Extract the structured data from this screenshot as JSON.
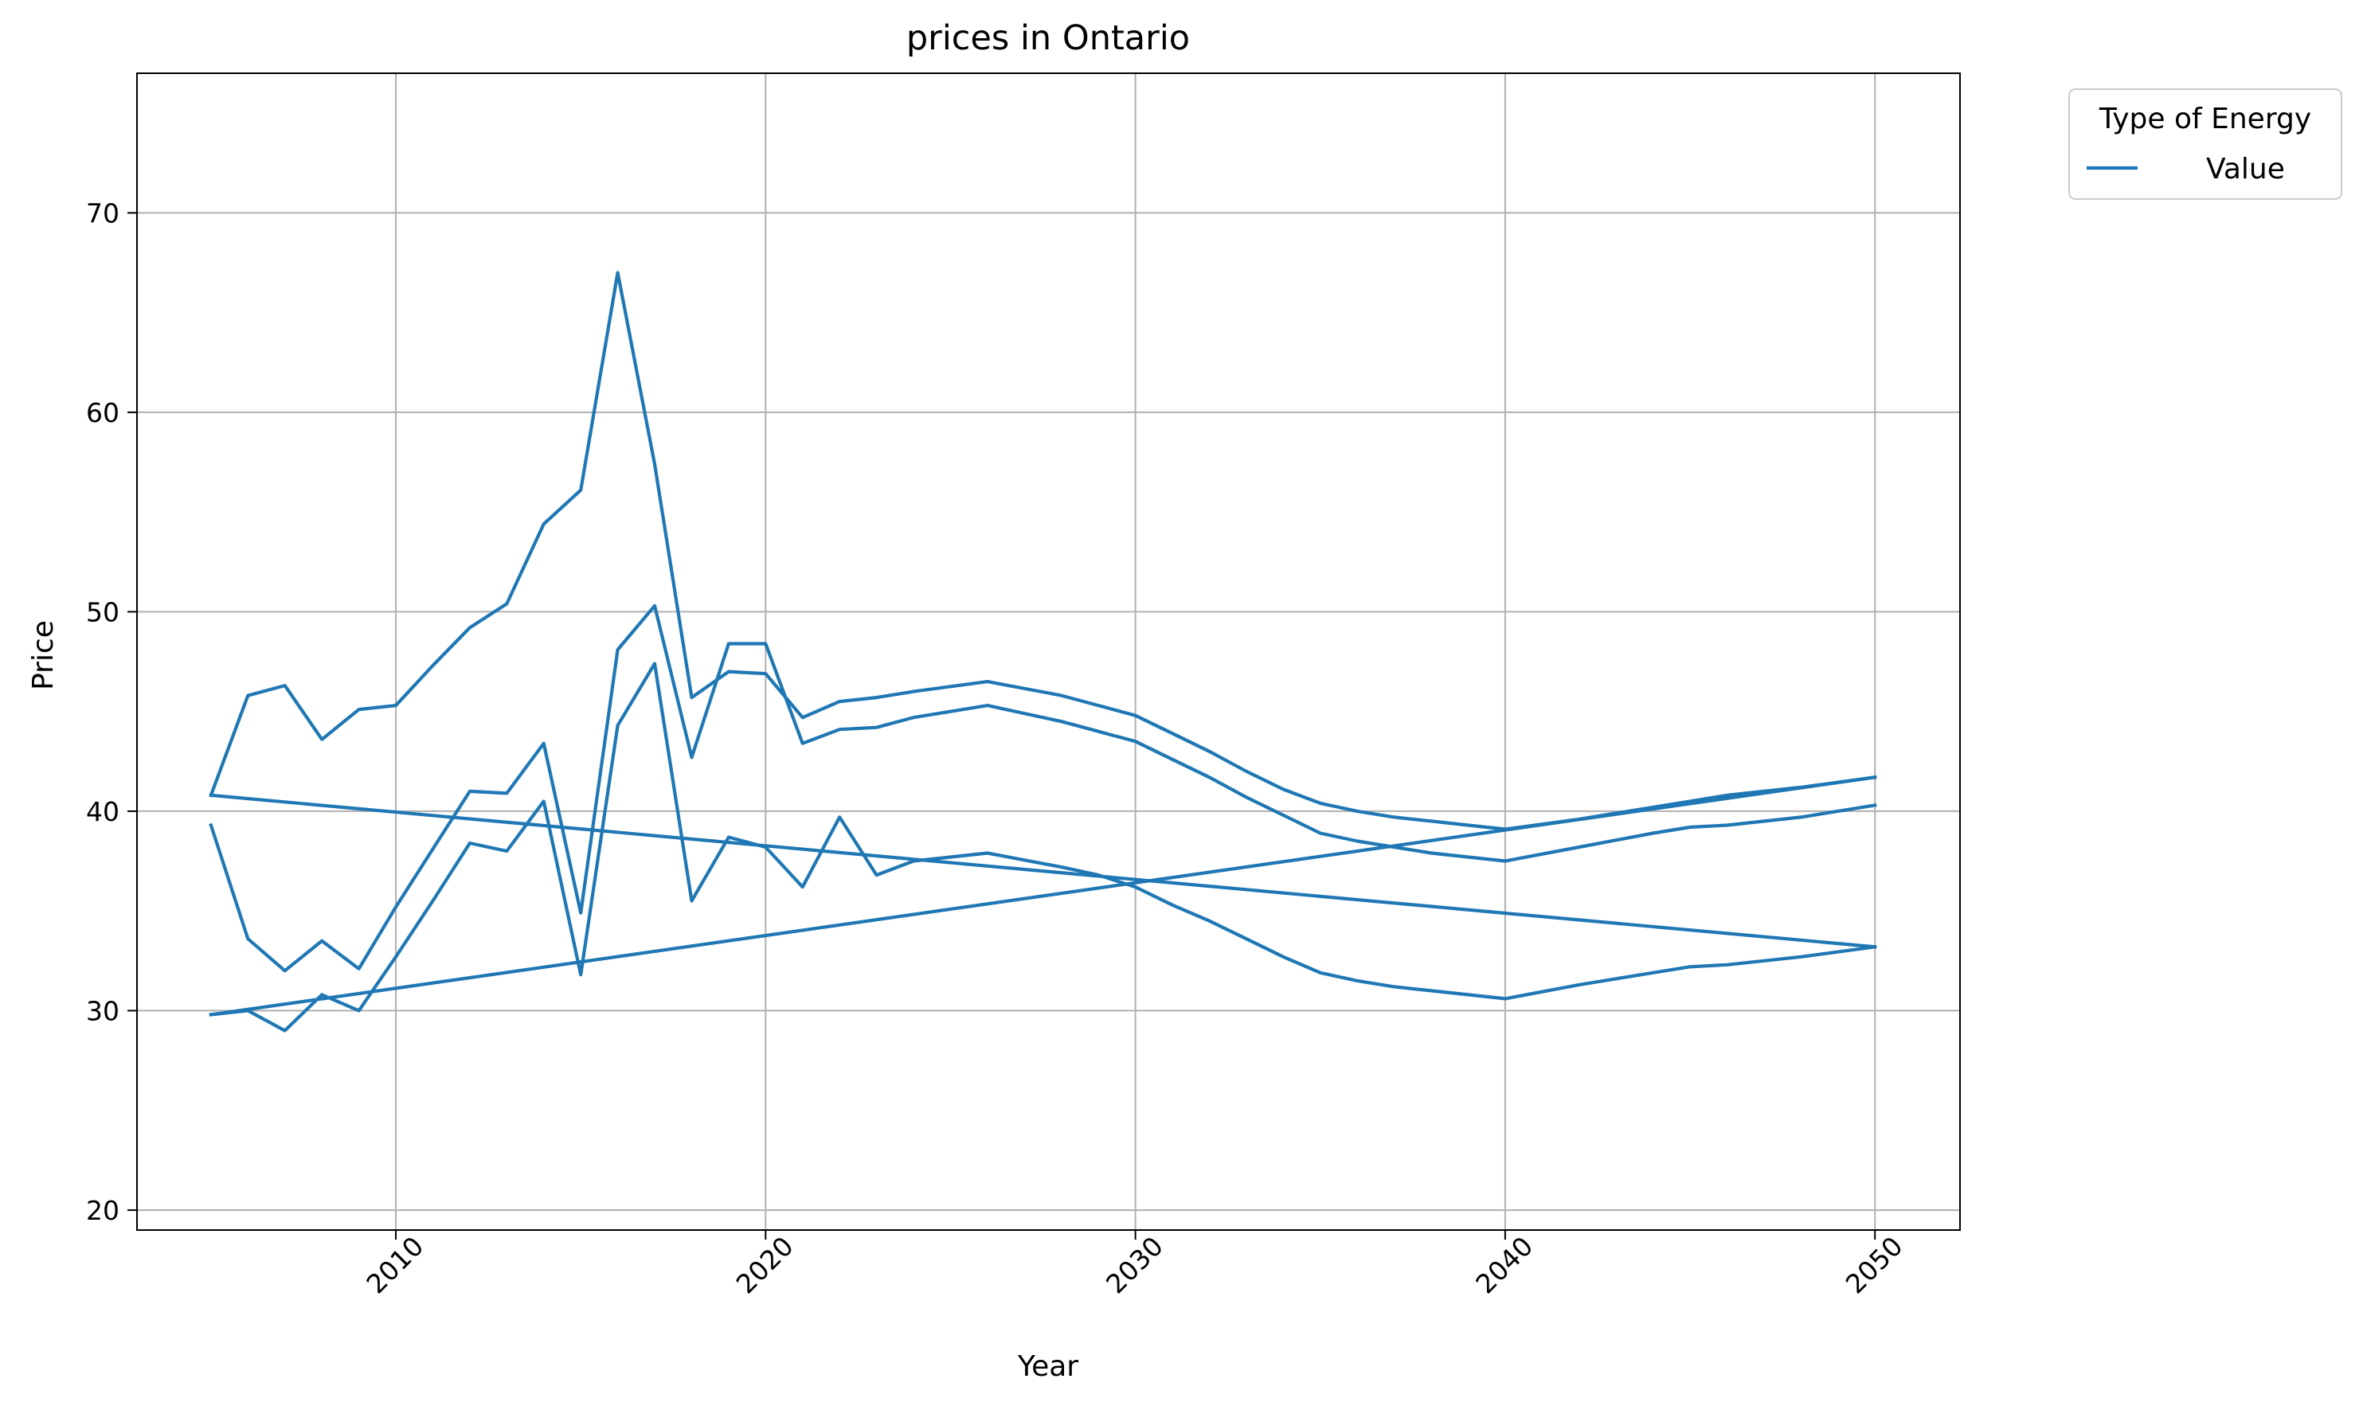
{
  "chart_data": {
    "type": "line",
    "title": "prices in Ontario",
    "xlabel": "Year",
    "ylabel": "Price",
    "xlim": [
      2003,
      2052.3
    ],
    "ylim": [
      19,
      77
    ],
    "xticks": [
      2010,
      2020,
      2030,
      2040,
      2050
    ],
    "yticks": [
      20,
      30,
      40,
      50,
      60,
      70
    ],
    "grid": true,
    "legend": {
      "title": "Type of Energy",
      "entries": [
        "Value"
      ],
      "placement": "outside-top-right"
    },
    "color": "#1f77b4",
    "series": [
      {
        "name": "Value",
        "x": [
          2005,
          2006,
          2007,
          2008,
          2009,
          2010,
          2011,
          2012,
          2013,
          2014,
          2015,
          2016,
          2017,
          2018,
          2019,
          2020,
          2021,
          2022,
          2023,
          2024,
          2025,
          2026,
          2027,
          2028,
          2029,
          2030,
          2031,
          2032,
          2033,
          2034,
          2035,
          2036,
          2037,
          2038,
          2039,
          2040,
          2041,
          2042,
          2043,
          2044,
          2045,
          2046,
          2047,
          2048,
          2049,
          2050,
          2005,
          2006,
          2007,
          2008,
          2009,
          2010,
          2011,
          2012,
          2013,
          2014,
          2015,
          2016,
          2017,
          2018,
          2019,
          2020,
          2021,
          2022,
          2023,
          2024,
          2025,
          2026,
          2027,
          2028,
          2029,
          2030,
          2031,
          2032,
          2033,
          2034,
          2035,
          2036,
          2037,
          2038,
          2039,
          2040,
          2041,
          2042,
          2043,
          2044,
          2045,
          2046,
          2047,
          2048,
          2049,
          2050,
          2005,
          2050,
          2005,
          2006,
          2007,
          2008,
          2009,
          2010,
          2011,
          2012,
          2013,
          2014,
          2015,
          2016,
          2017,
          2018,
          2019,
          2020,
          2021,
          2022,
          2023,
          2024,
          2025,
          2026,
          2027,
          2028,
          2029,
          2030,
          2031,
          2032,
          2033,
          2034,
          2035,
          2036,
          2037,
          2038,
          2039,
          2040,
          2041,
          2042,
          2043,
          2044,
          2045,
          2046,
          2047,
          2048,
          2049,
          2050,
          2005,
          2050
        ],
        "y": [
          40.8,
          45.8,
          46.3,
          43.6,
          45.1,
          45.3,
          47.3,
          49.2,
          50.4,
          54.4,
          56.1,
          67.0,
          57.4,
          45.7,
          47.0,
          46.9,
          44.7,
          45.5,
          45.7,
          46.0,
          46.3,
          46.5,
          46.1,
          45.8,
          45.3,
          44.8,
          43.9,
          43.0,
          42.0,
          41.1,
          40.4,
          40.0,
          39.7,
          39.5,
          39.3,
          39.1,
          39.3,
          39.6,
          39.9,
          40.2,
          40.5,
          40.8,
          41.0,
          41.2,
          41.5,
          41.7,
          40.8,
          40.7,
          40.6,
          40.5,
          40.3,
          40.1,
          39.9,
          39.7,
          39.5,
          39.3,
          39.1,
          38.9,
          38.7,
          38.5,
          38.3,
          38.1,
          37.9,
          37.7,
          37.5,
          37.3,
          37.1,
          36.9,
          36.7,
          36.5,
          36.3,
          36.1,
          35.9,
          35.7,
          35.5,
          35.3,
          35.1,
          34.9,
          34.7,
          34.5,
          34.3,
          34.1,
          33.9,
          33.7,
          33.5,
          33.3,
          33.2,
          33.1,
          33.1,
          33.1,
          33.2,
          33.2,
          33.2,
          41.7,
          29.8,
          29.9,
          30.2,
          30.5,
          30.8,
          31.1,
          31.4,
          31.7,
          32.0,
          32.3,
          32.6,
          32.9,
          33.2,
          33.5,
          33.8,
          34.1,
          34.4,
          34.7,
          35.0,
          35.3,
          35.6,
          35.9,
          36.2,
          36.5,
          36.8,
          37.1,
          37.4,
          37.7,
          38.0,
          38.3,
          38.6,
          38.9,
          39.2,
          39.5,
          39.8,
          40.1,
          40.4,
          40.7,
          41.0,
          41.3,
          41.6,
          41.9,
          42.2,
          42.5,
          42.8,
          43.1,
          29.8,
          43.1
        ]
      }
    ],
    "lines": [
      {
        "name": "Value",
        "x": [
          2005,
          2006,
          2007,
          2008,
          2009,
          2010,
          2011,
          2012,
          2013,
          2014,
          2015,
          2016,
          2017,
          2018,
          2019,
          2020,
          2021,
          2022,
          2023,
          2024,
          2026,
          2028,
          2029,
          2030,
          2031,
          2032,
          2033,
          2034,
          2035,
          2036,
          2037,
          2038,
          2039,
          2040,
          2042,
          2044,
          2045,
          2046,
          2048,
          2050
        ],
        "y": [
          40.8,
          45.8,
          46.3,
          43.6,
          45.1,
          45.3,
          47.3,
          49.2,
          50.4,
          54.4,
          56.1,
          67.0,
          57.4,
          45.7,
          47.0,
          46.9,
          44.7,
          45.5,
          45.7,
          46.0,
          46.5,
          45.8,
          45.3,
          44.8,
          43.9,
          43.0,
          42.0,
          41.1,
          40.4,
          40.0,
          39.7,
          39.5,
          39.3,
          39.1,
          39.6,
          40.2,
          40.5,
          40.8,
          41.2,
          41.7
        ]
      },
      {
        "name": "Value",
        "x": [
          2005,
          2006,
          2007,
          2008,
          2009,
          2010,
          2011,
          2012,
          2013,
          2014,
          2015,
          2016,
          2017,
          2018,
          2019,
          2020,
          2021,
          2022,
          2023,
          2024,
          2026,
          2028,
          2029,
          2030,
          2031,
          2032,
          2033,
          2034,
          2035,
          2036,
          2037,
          2038,
          2039,
          2040,
          2042,
          2044,
          2045,
          2046,
          2048,
          2050
        ],
        "y": [
          29.8,
          30.0,
          29.0,
          30.8,
          30.0,
          32.7,
          35.5,
          38.4,
          38.0,
          40.5,
          31.8,
          44.3,
          47.4,
          35.5,
          38.7,
          38.2,
          36.2,
          39.7,
          36.8,
          37.5,
          37.9,
          37.2,
          36.8,
          36.2,
          35.3,
          34.5,
          33.6,
          32.7,
          31.9,
          31.5,
          31.2,
          31.0,
          30.8,
          30.6,
          31.3,
          31.9,
          32.2,
          32.3,
          32.7,
          33.2
        ]
      },
      {
        "name": "Value",
        "x": [
          2005,
          2006,
          2007,
          2008,
          2009,
          2010,
          2011,
          2012,
          2013,
          2014,
          2015,
          2016,
          2017,
          2018,
          2019,
          2020,
          2021,
          2022,
          2023,
          2024,
          2026,
          2028,
          2029,
          2030,
          2031,
          2032,
          2033,
          2034,
          2035,
          2036,
          2037,
          2038,
          2039,
          2040,
          2042,
          2044,
          2045,
          2046,
          2048,
          2050
        ],
        "y": [
          39.3,
          33.6,
          32.0,
          33.5,
          32.1,
          35.2,
          38.1,
          41.0,
          40.9,
          43.4,
          34.9,
          48.1,
          50.3,
          42.7,
          48.4,
          48.4,
          43.4,
          44.1,
          44.2,
          44.7,
          45.3,
          44.5,
          44.0,
          43.5,
          42.6,
          41.7,
          40.7,
          39.8,
          38.9,
          38.5,
          38.2,
          37.9,
          37.7,
          37.5,
          38.2,
          38.9,
          39.2,
          39.3,
          39.7,
          40.3
        ]
      },
      {
        "name": "Value",
        "x": [
          2005,
          2050
        ],
        "y": [
          40.8,
          33.2
        ]
      },
      {
        "name": "Value",
        "x": [
          2005,
          2050
        ],
        "y": [
          29.8,
          41.7
        ]
      }
    ]
  }
}
